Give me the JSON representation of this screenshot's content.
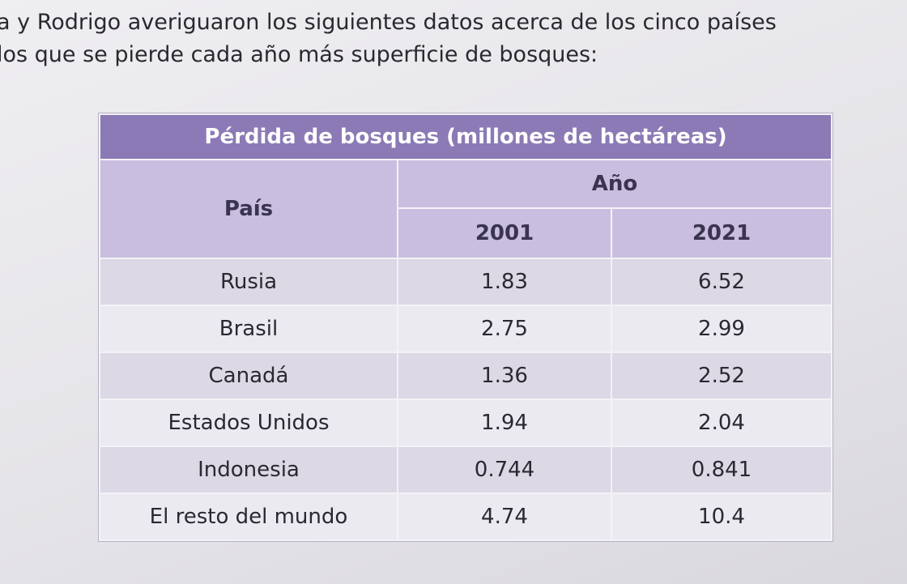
{
  "intro": {
    "lines": [
      "a y Rodrigo averiguaron los siguientes datos acerca de los cinco países",
      "los que se pierde cada año más superficie de bosques:"
    ]
  },
  "table": {
    "title": "Pérdida de bosques (millones de hectáreas)",
    "header": {
      "country": "País",
      "year": "Año",
      "years": [
        "2001",
        "2021"
      ]
    },
    "rows": [
      [
        "Rusia",
        "1.83",
        "6.52"
      ],
      [
        "Brasil",
        "2.75",
        "2.99"
      ],
      [
        "Canadá",
        "1.36",
        "2.52"
      ],
      [
        "Estados Unidos",
        "1.94",
        "2.04"
      ],
      [
        "Indonesia",
        "0.744",
        "0.841"
      ],
      [
        "El resto del mundo",
        "4.74",
        "10.4"
      ]
    ]
  }
}
